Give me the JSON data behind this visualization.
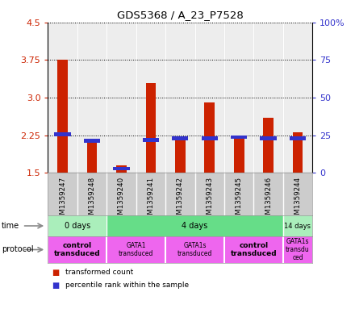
{
  "title": "GDS5368 / A_23_P7528",
  "samples": [
    "GSM1359247",
    "GSM1359248",
    "GSM1359240",
    "GSM1359241",
    "GSM1359242",
    "GSM1359243",
    "GSM1359245",
    "GSM1359246",
    "GSM1359244"
  ],
  "red_values": [
    3.75,
    2.18,
    1.65,
    3.28,
    2.22,
    2.9,
    2.22,
    2.6,
    2.3
  ],
  "blue_bottom": [
    2.23,
    2.1,
    1.55,
    2.12,
    2.15,
    2.15,
    2.17,
    2.15,
    2.15
  ],
  "blue_top": [
    2.31,
    2.18,
    1.61,
    2.2,
    2.22,
    2.22,
    2.24,
    2.22,
    2.22
  ],
  "ymin": 1.5,
  "ymax": 4.5,
  "yticks_left": [
    1.5,
    2.25,
    3.0,
    3.75,
    4.5
  ],
  "yticks_right_labels": [
    "0",
    "25",
    "50",
    "75",
    "100%"
  ],
  "yticks_right_vals": [
    0,
    25,
    50,
    75,
    100
  ],
  "red_color": "#cc2200",
  "blue_color": "#3333cc",
  "time_groups": [
    {
      "label": "0 days",
      "start": 0,
      "end": 2,
      "color": "#aaeebb"
    },
    {
      "label": "4 days",
      "start": 2,
      "end": 8,
      "color": "#66dd88"
    },
    {
      "label": "14 days",
      "start": 8,
      "end": 9,
      "color": "#aaeebb"
    }
  ],
  "protocol_groups": [
    {
      "label": "control\ntransduced",
      "start": 0,
      "end": 2,
      "color": "#ee66ee",
      "bold": true
    },
    {
      "label": "GATA1\ntransduced",
      "start": 2,
      "end": 4,
      "color": "#ee66ee",
      "bold": false
    },
    {
      "label": "GATA1s\ntransduced",
      "start": 4,
      "end": 6,
      "color": "#ee66ee",
      "bold": false
    },
    {
      "label": "control\ntransduced",
      "start": 6,
      "end": 8,
      "color": "#ee66ee",
      "bold": true
    },
    {
      "label": "GATA1s\ntransdu\nced",
      "start": 8,
      "end": 9,
      "color": "#ee66ee",
      "bold": false
    }
  ],
  "legend_red": "transformed count",
  "legend_blue": "percentile rank within the sample",
  "left_tick_color": "#cc2200",
  "right_tick_color": "#3333cc",
  "bg_color": "#ffffff",
  "sample_bg": "#cccccc",
  "plot_bg": "#ffffff"
}
